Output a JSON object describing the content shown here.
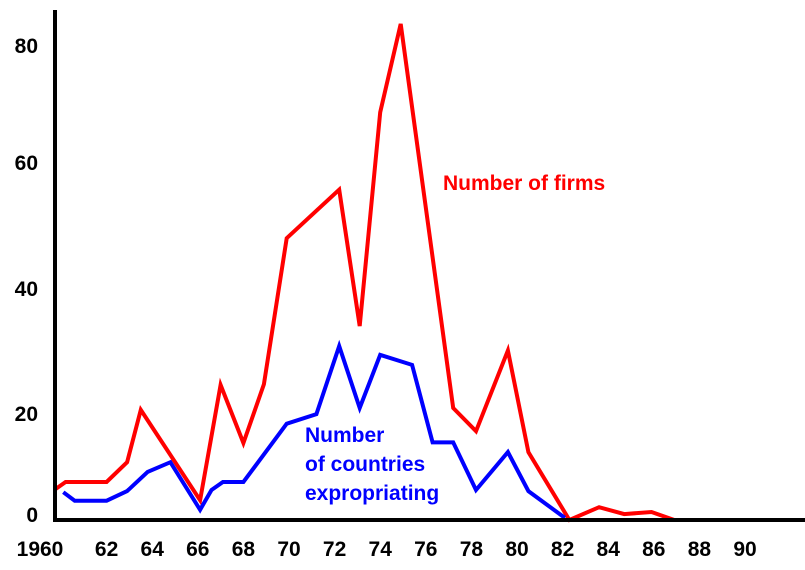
{
  "chart_data": {
    "type": "line",
    "title": "",
    "xlabel": "",
    "ylabel": "",
    "xlim": [
      1960,
      1992
    ],
    "ylim": [
      0,
      85
    ],
    "grid": false,
    "x_tick_labels": [
      "1960",
      "62",
      "64",
      "66",
      "68",
      "70",
      "72",
      "74",
      "76",
      "78",
      "80",
      "82",
      "84",
      "86",
      "88",
      "90"
    ],
    "x_tick_values": [
      1960,
      1962,
      1964,
      1966,
      1968,
      1970,
      1972,
      1974,
      1976,
      1978,
      1980,
      1982,
      1984,
      1986,
      1988,
      1990
    ],
    "y_tick_labels": [
      "0",
      "20",
      "40",
      "60",
      "80"
    ],
    "y_tick_values": [
      0,
      20,
      40,
      60,
      80
    ],
    "series": [
      {
        "name": "Number of firms",
        "color": "#ff0000",
        "points": [
          [
            1959.7,
            5.6
          ],
          [
            1960.2,
            7.1
          ],
          [
            1962,
            7.1
          ],
          [
            1962.9,
            10.8
          ],
          [
            1963.5,
            20.5
          ],
          [
            1966.1,
            3.7
          ],
          [
            1967,
            24.5
          ],
          [
            1968,
            14.4
          ],
          [
            1968.9,
            24.6
          ],
          [
            1969.9,
            47.9
          ],
          [
            1972.2,
            55.6
          ],
          [
            1973.1,
            33.9
          ],
          [
            1974,
            68.5
          ],
          [
            1974.9,
            83.6
          ],
          [
            1977.2,
            20.8
          ],
          [
            1978.2,
            16.6
          ],
          [
            1979.6,
            30
          ],
          [
            1980.5,
            12.7
          ],
          [
            1982.3,
            0
          ],
          [
            1983.6,
            2.4
          ],
          [
            1984.7,
            1.1
          ],
          [
            1985.9,
            1.5
          ],
          [
            1986.9,
            0
          ],
          [
            1992,
            0
          ]
        ]
      },
      {
        "name": "Number of countries expropriating",
        "color": "#0000ff",
        "points": [
          [
            1960.1,
            5.2
          ],
          [
            1960.6,
            3.6
          ],
          [
            1962,
            3.6
          ],
          [
            1962.9,
            5.4
          ],
          [
            1963.8,
            9.0
          ],
          [
            1964.8,
            10.8
          ],
          [
            1966.1,
            1.9
          ],
          [
            1966.6,
            5.6
          ],
          [
            1967.1,
            7.1
          ],
          [
            1968,
            7.1
          ],
          [
            1969.9,
            18.0
          ],
          [
            1971.2,
            19.8
          ],
          [
            1972.2,
            30.7
          ],
          [
            1973.1,
            20.8
          ],
          [
            1974,
            29.3
          ],
          [
            1975.4,
            27.7
          ],
          [
            1976.3,
            14.5
          ],
          [
            1977.2,
            14.5
          ],
          [
            1978.2,
            5.6
          ],
          [
            1979.6,
            12.7
          ],
          [
            1980.5,
            5.4
          ],
          [
            1982.1,
            0.4
          ]
        ]
      }
    ],
    "annotations": {
      "firms": "Number of firms",
      "countries_line1": "Number",
      "countries_line2": "of countries",
      "countries_line3": "expropriating"
    }
  }
}
